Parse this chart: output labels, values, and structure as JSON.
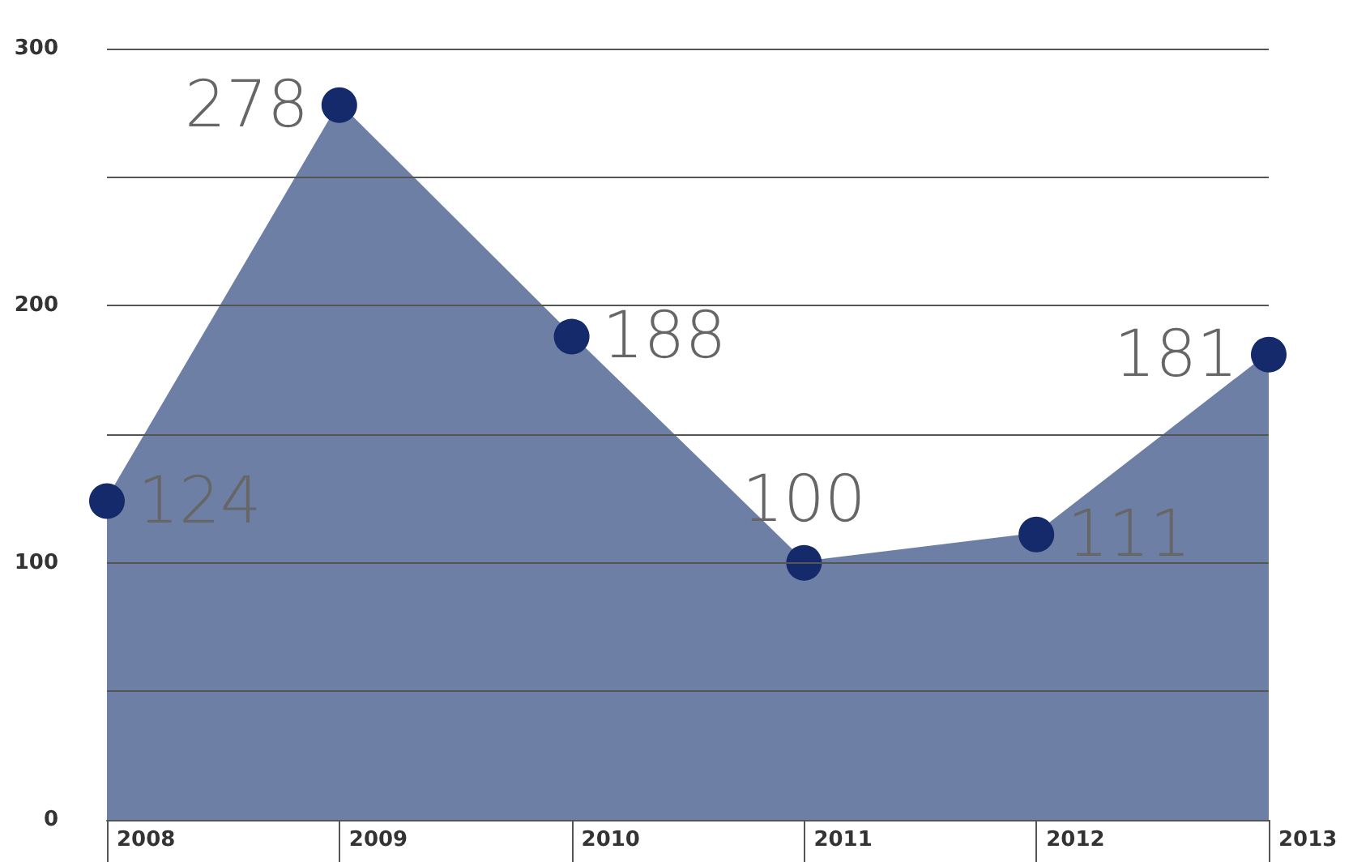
{
  "chart_data": {
    "type": "area",
    "categories": [
      "2008",
      "2009",
      "2010",
      "2011",
      "2012",
      "2013"
    ],
    "series": [
      {
        "color": "#6e7fa5",
        "values": [
          124,
          278,
          188,
          100,
          111,
          181
        ]
      }
    ],
    "ylim": [
      0,
      300
    ],
    "yticks": [
      0,
      {
        "value": 50,
        "label": null
      },
      100,
      {
        "value": 150,
        "label": null
      },
      200,
      {
        "value": 250,
        "label": null
      },
      300
    ],
    "grid": "y",
    "marker": "circle",
    "data_labels": true
  }
}
